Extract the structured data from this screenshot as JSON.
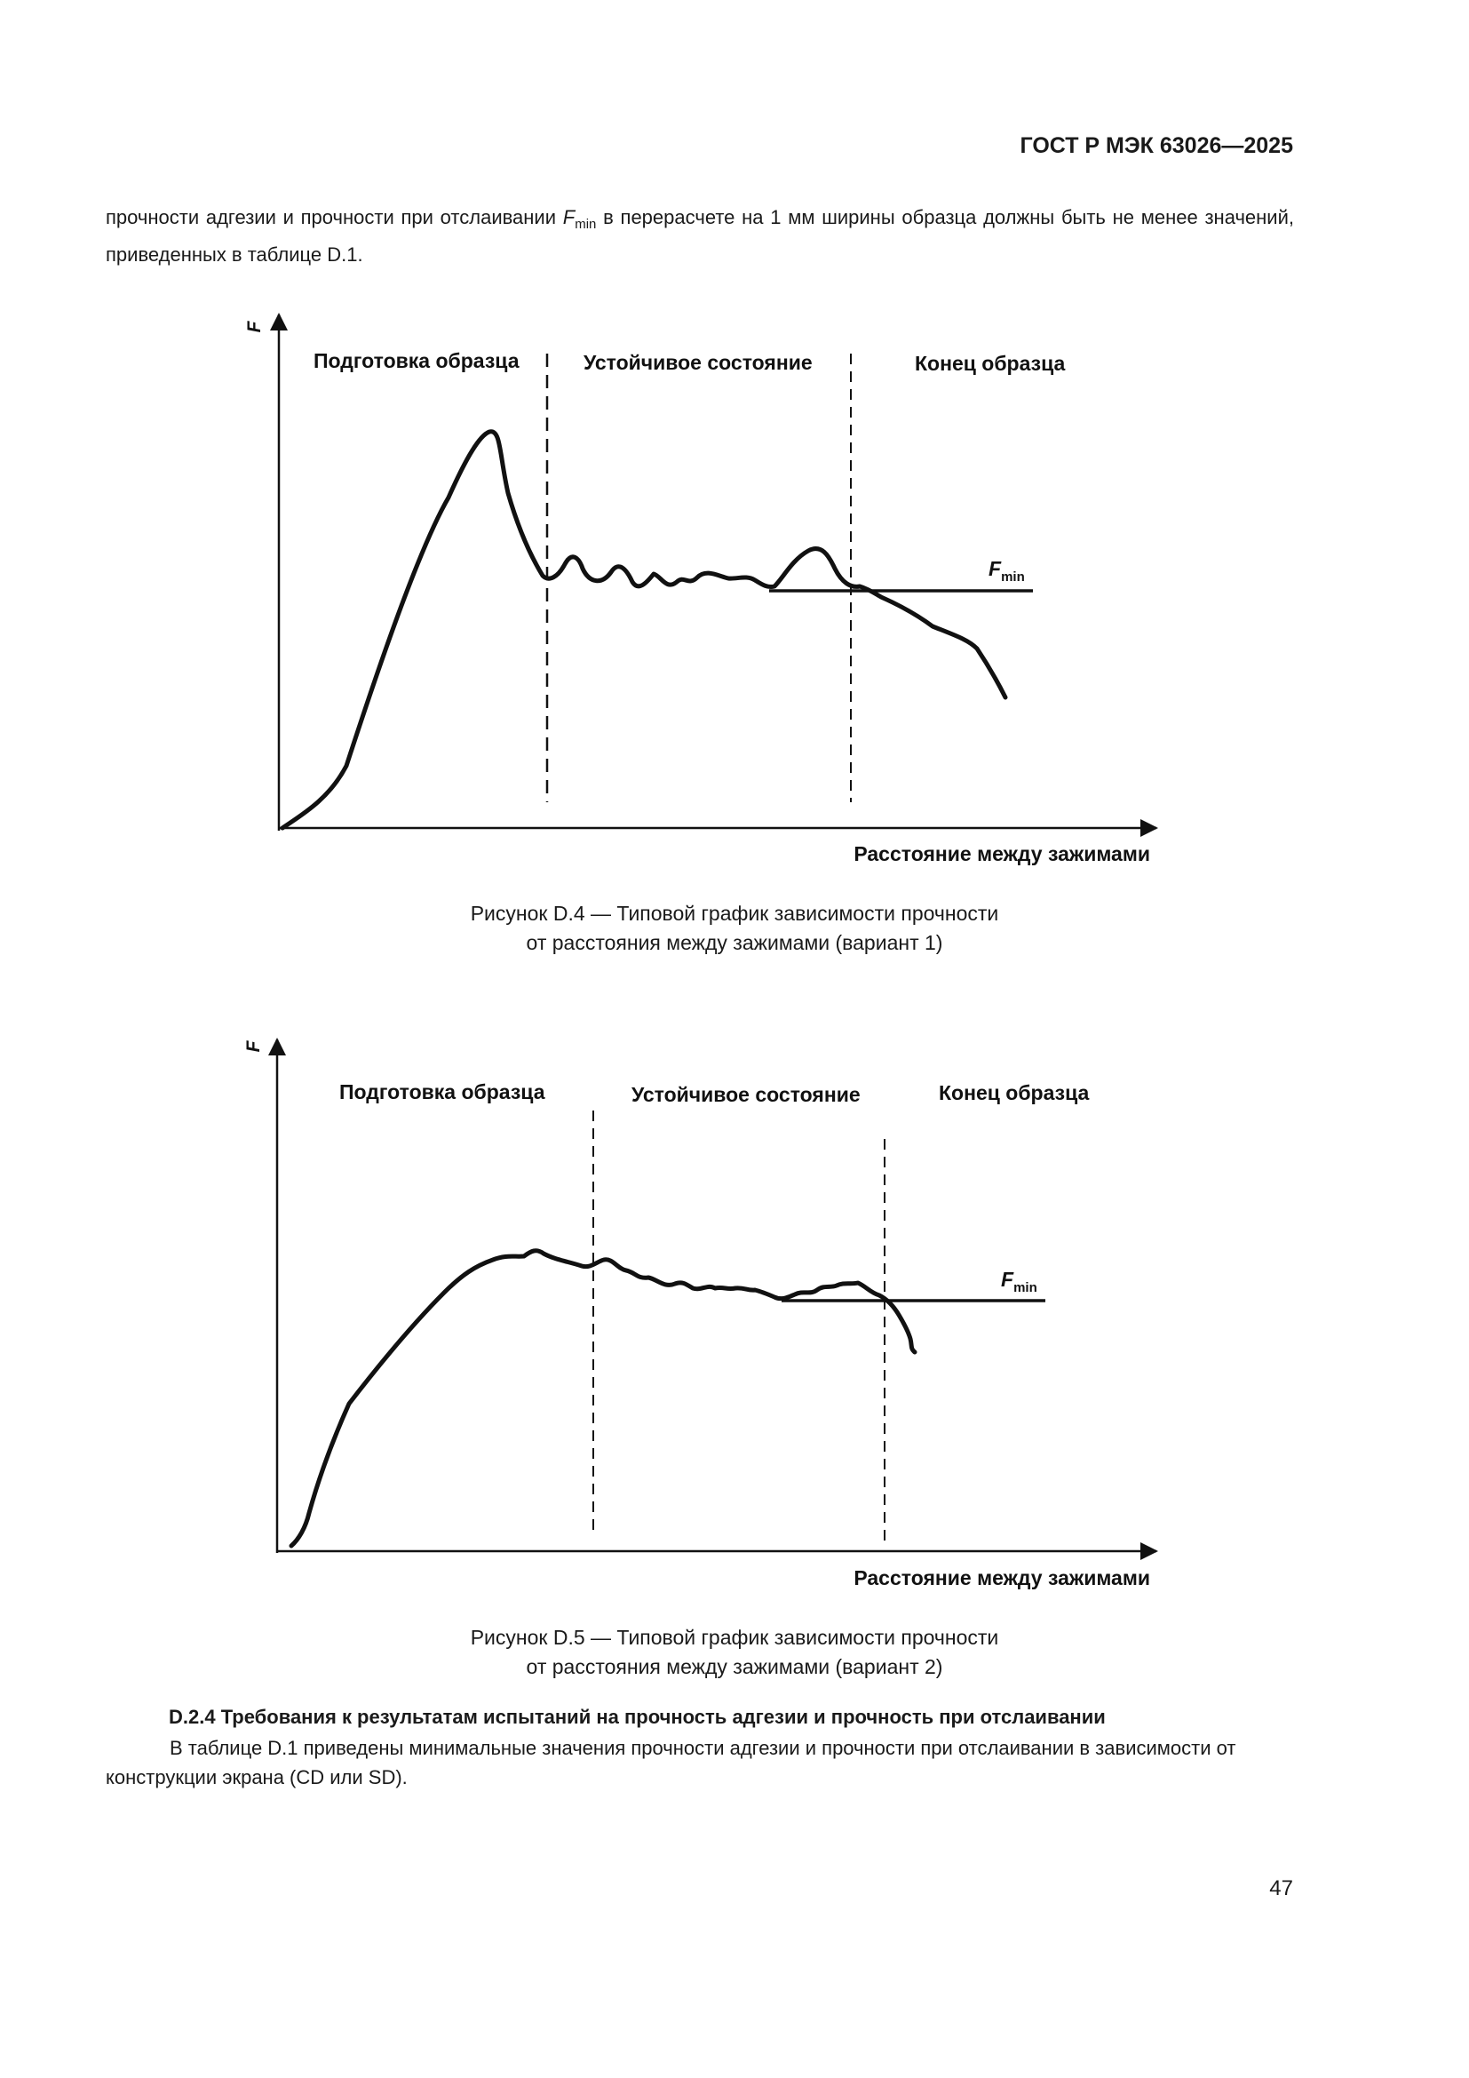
{
  "header": {
    "standard": "ГОСТ Р МЭК 63026—2025"
  },
  "intro": {
    "before": "прочности адгезии и прочности при отслаивании ",
    "symbol": "F",
    "subscript": "min",
    "after": " в перерасчете на 1 мм ширины образца должны быть не менее значений, приведенных в таблице D.1."
  },
  "figure1": {
    "y_axis": "F",
    "x_axis": "Расстояние между зажимами",
    "zone_prep": "Подготовка образца",
    "zone_steady": "Устойчивое состояние",
    "zone_end": "Конец образца",
    "fmin_symbol": "F",
    "fmin_sub": "min",
    "caption_line1": "Рисунок D.4 — Типовой график зависимости прочности",
    "caption_line2": "от расстояния между зажимами (вариант 1)"
  },
  "figure2": {
    "y_axis": "F",
    "x_axis": "Расстояние между зажимами",
    "zone_prep": "Подготовка образца",
    "zone_steady": "Устойчивое состояние",
    "zone_end": "Конец образца",
    "fmin_symbol": "F",
    "fmin_sub": "min",
    "caption_line1": "Рисунок D.5 — Типовой график зависимости прочности",
    "caption_line2": "от расстояния между зажимами (вариант 2)"
  },
  "section": {
    "title": "D.2.4 Требования к результатам испытаний на прочность адгезии и прочность при отслаивании",
    "body": "В таблице D.1 приведены минимальные значения прочности адгезии и прочности при отслаивании в зависимости от конструкции экрана (CD или SD)."
  },
  "page_number": "47"
}
